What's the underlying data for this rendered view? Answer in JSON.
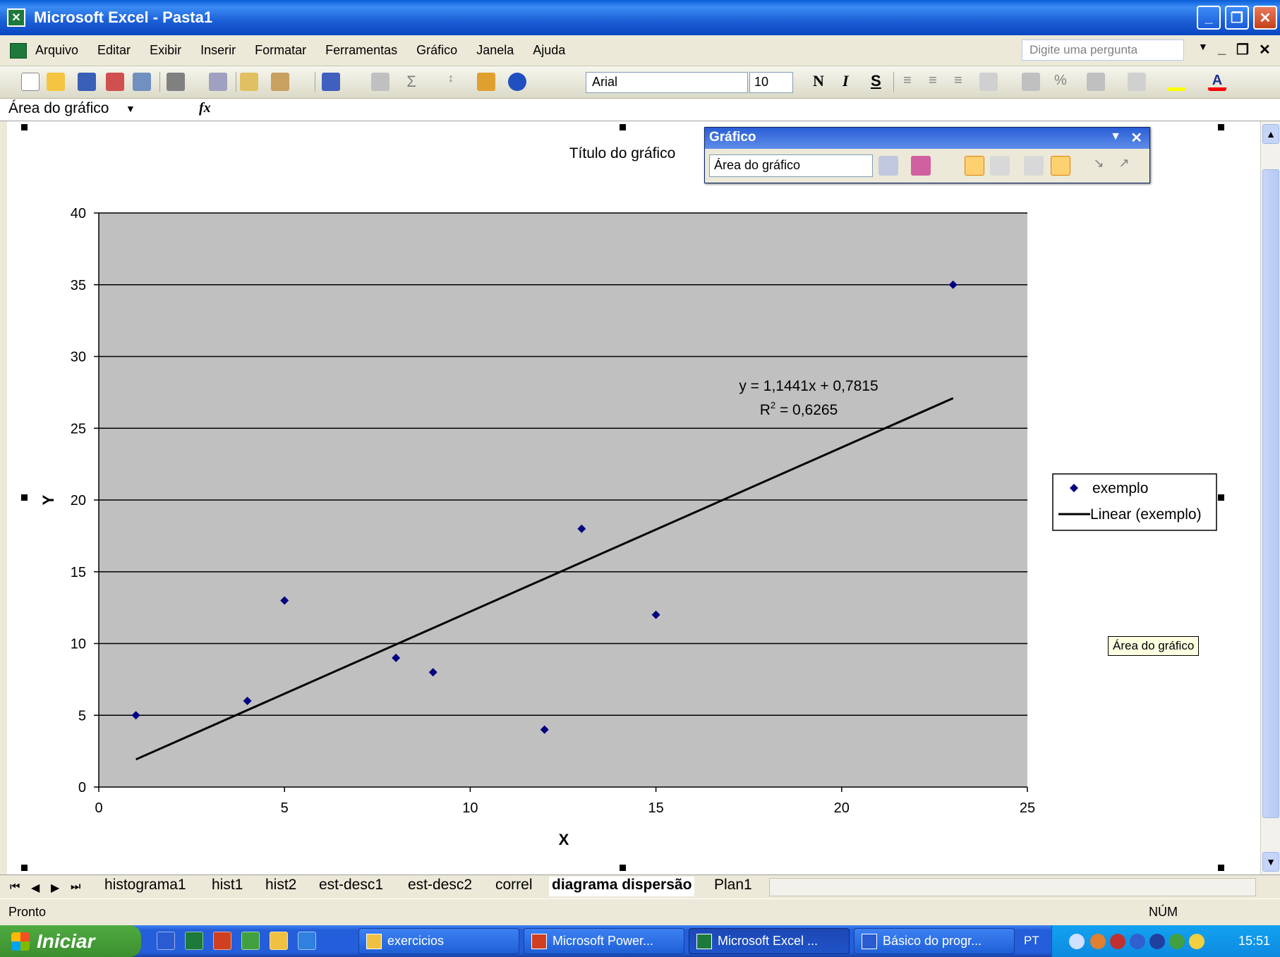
{
  "window": {
    "title": "Microsoft Excel - Pasta1",
    "app_icon": "excel-icon"
  },
  "menu": {
    "items": [
      "Arquivo",
      "Editar",
      "Exibir",
      "Inserir",
      "Formatar",
      "Ferramentas",
      "Gráfico",
      "Janela",
      "Ajuda"
    ],
    "question_placeholder": "Digite uma pergunta"
  },
  "toolbar": {
    "font": "Arial",
    "font_size": "10",
    "bold": "N",
    "italic": "I",
    "underline": "S",
    "percent": "%"
  },
  "formula_bar": {
    "name_box": "Área do gráfico",
    "fx": "fx"
  },
  "chart_toolbar": {
    "title": "Gráfico",
    "selected_object": "Área do gráfico"
  },
  "tooltip": "Área do gráfico",
  "chart_data": {
    "type": "scatter",
    "title": "Título do gráfico",
    "xlabel": "X",
    "ylabel": "Y",
    "xlim": [
      0,
      25
    ],
    "ylim": [
      0,
      40
    ],
    "x_ticks": [
      0,
      5,
      10,
      15,
      20,
      25
    ],
    "y_ticks": [
      0,
      5,
      10,
      15,
      20,
      25,
      30,
      35,
      40
    ],
    "grid": "horizontal major gridlines",
    "plot_background": "#c0c0c0",
    "series": [
      {
        "name": "exemplo",
        "marker": "diamond",
        "color": "#000080",
        "points": [
          [
            1,
            5
          ],
          [
            4,
            6
          ],
          [
            5,
            13
          ],
          [
            8,
            9
          ],
          [
            9,
            8
          ],
          [
            12,
            4
          ],
          [
            13,
            18
          ],
          [
            15,
            12
          ],
          [
            23,
            35
          ]
        ]
      }
    ],
    "trendline": {
      "name": "Linear (exemplo)",
      "type": "linear",
      "slope": 1.1441,
      "intercept": 0.7815,
      "x_range": [
        1,
        23
      ],
      "equation": "y = 1,1441x + 0,7815",
      "r2_label": "R",
      "r2_value": " = 0,6265"
    },
    "legend": {
      "position": "right",
      "entries": [
        "exemplo",
        "Linear (exemplo)"
      ]
    }
  },
  "sheet_tabs": [
    "histograma1",
    "hist1",
    "hist2",
    "est-desc1",
    "est-desc2",
    "correl",
    "diagrama dispersão",
    "Plan1"
  ],
  "active_tab": "diagrama dispersão",
  "status": {
    "left": "Pronto",
    "num": "NÚM"
  },
  "taskbar": {
    "start": "Iniciar",
    "tasks": [
      "exercicios",
      "Microsoft Power...",
      "Microsoft Excel ...",
      "Básico do progr..."
    ],
    "active_task": "Microsoft Excel ...",
    "language": "PT",
    "clock": "15:51"
  }
}
